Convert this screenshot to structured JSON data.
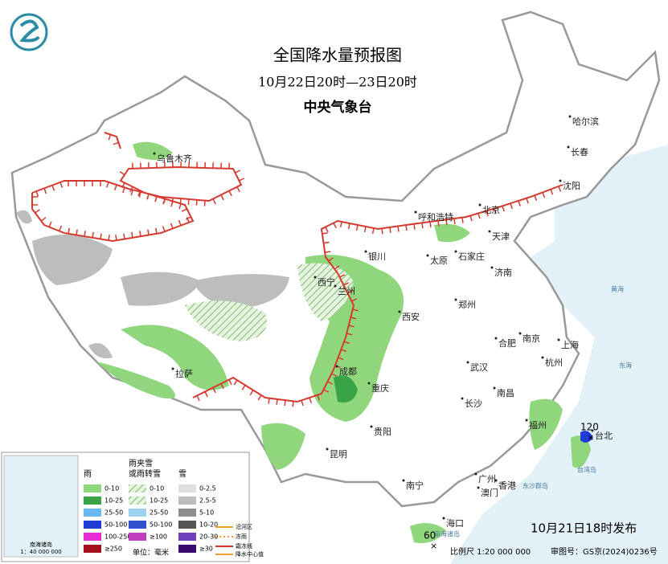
{
  "header": {
    "title": "全国降水量预报图",
    "subtitle": "10月22日20时—23日20时",
    "agency": "中央气象台"
  },
  "cities": [
    "乌鲁木齐",
    "哈尔滨",
    "长春",
    "沈阳",
    "呼和浩特",
    "北京",
    "天津",
    "银川",
    "太原",
    "石家庄",
    "济南",
    "西宁",
    "兰州",
    "西安",
    "郑州",
    "合肥",
    "南京",
    "上海",
    "杭州",
    "武汉",
    "拉萨",
    "成都",
    "重庆",
    "南昌",
    "长沙",
    "福州",
    "台北",
    "贵阳",
    "昆明",
    "南宁",
    "广州",
    "香港",
    "澳门",
    "海口"
  ],
  "seas": [
    "黄海",
    "东海",
    "台湾岛",
    "东沙群岛",
    "南海诸岛"
  ],
  "centers": [
    120,
    60
  ],
  "legend": {
    "rain": {
      "title": "雨",
      "items": [
        "0-10",
        "10-25",
        "25-50",
        "50-100",
        "100-250",
        "≥250"
      ]
    },
    "mixed": {
      "title": [
        "雨夹雪",
        "或雨转雪"
      ],
      "items": [
        "0-10",
        "10-25",
        "25-50",
        "50-100",
        "≥100"
      ]
    },
    "snow": {
      "title": "雪",
      "items": [
        "0-2.5",
        "2.5-5",
        "5-10",
        "10-20",
        "20-30",
        "≥30"
      ]
    },
    "unit": "单位：毫米",
    "others": [
      "沿河区",
      "冻雨",
      "霜冻线",
      "降水中心值"
    ]
  },
  "inset": {
    "scale": "1：40 000 000",
    "label": "南海诸岛"
  },
  "footer": {
    "issued": "10月21日18时发布",
    "scale": "比例尺 1:20 000 000",
    "map_number": "审图号：GS京(2024)0236号"
  }
}
